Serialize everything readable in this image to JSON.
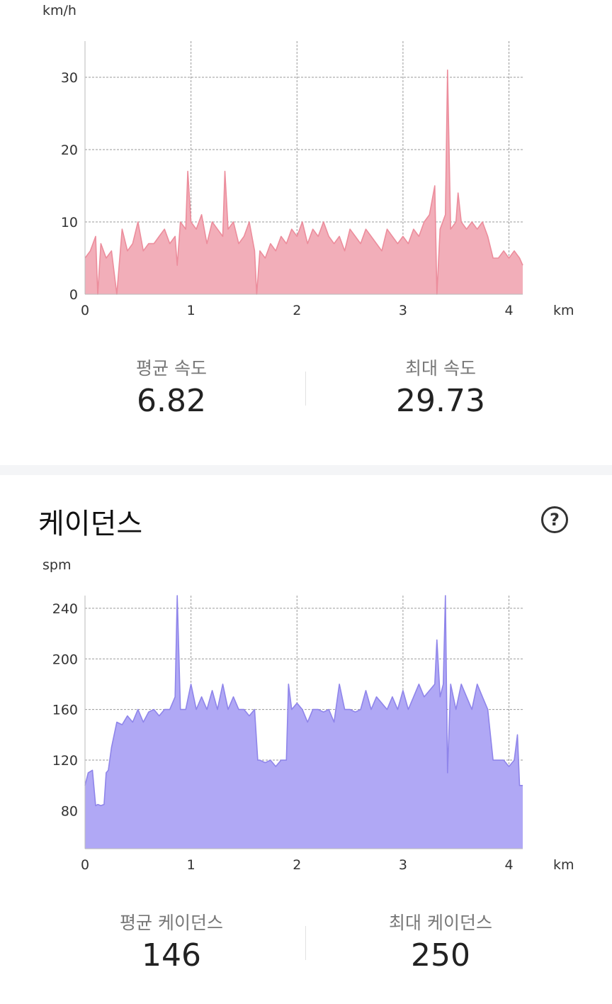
{
  "speed": {
    "unit": "km/h",
    "x_unit": "km",
    "stats": {
      "avg_label": "평균 속도",
      "avg_value": "6.82",
      "max_label": "최대 속도",
      "max_value": "29.73"
    }
  },
  "cadence": {
    "title": "케이던스",
    "help_icon": "question-circle-icon",
    "unit": "spm",
    "x_unit": "km",
    "stats": {
      "avg_label": "평균 케이던스",
      "avg_value": "146",
      "max_label": "최대 케이던스",
      "max_value": "250"
    }
  },
  "chart_data": [
    {
      "type": "area",
      "ylabel": "km/h",
      "xlabel": "km",
      "xlim": [
        0,
        4.13
      ],
      "ylim": [
        0,
        35
      ],
      "x_ticks": [
        0,
        1,
        2,
        3,
        4
      ],
      "y_ticks": [
        0,
        10,
        20,
        30
      ],
      "grid": true,
      "color": "#f2aeb9",
      "line_color": "#ec8d9c",
      "x": [
        0,
        0.05,
        0.1,
        0.12,
        0.15,
        0.2,
        0.25,
        0.3,
        0.35,
        0.4,
        0.45,
        0.5,
        0.55,
        0.6,
        0.65,
        0.7,
        0.75,
        0.8,
        0.85,
        0.87,
        0.9,
        0.95,
        0.97,
        1.0,
        1.05,
        1.1,
        1.15,
        1.2,
        1.25,
        1.3,
        1.32,
        1.35,
        1.4,
        1.45,
        1.5,
        1.55,
        1.6,
        1.62,
        1.65,
        1.7,
        1.75,
        1.8,
        1.85,
        1.9,
        1.95,
        2.0,
        2.05,
        2.1,
        2.15,
        2.2,
        2.25,
        2.3,
        2.35,
        2.4,
        2.45,
        2.5,
        2.55,
        2.6,
        2.65,
        2.7,
        2.75,
        2.8,
        2.85,
        2.9,
        2.95,
        3.0,
        3.05,
        3.1,
        3.15,
        3.2,
        3.25,
        3.3,
        3.32,
        3.35,
        3.4,
        3.42,
        3.45,
        3.5,
        3.52,
        3.55,
        3.6,
        3.65,
        3.7,
        3.75,
        3.8,
        3.85,
        3.9,
        3.95,
        4.0,
        4.05,
        4.1,
        4.13
      ],
      "y": [
        5,
        6,
        8,
        0,
        7,
        5,
        6,
        0,
        9,
        6,
        7,
        10,
        6,
        7,
        7,
        8,
        9,
        7,
        8,
        4,
        10,
        9,
        17,
        10,
        9,
        11,
        7,
        10,
        9,
        8,
        17,
        9,
        10,
        7,
        8,
        10,
        6,
        0,
        6,
        5,
        7,
        6,
        8,
        7,
        9,
        8,
        10,
        7,
        9,
        8,
        10,
        8,
        7,
        8,
        6,
        9,
        8,
        7,
        9,
        8,
        7,
        6,
        9,
        8,
        7,
        8,
        7,
        9,
        8,
        10,
        11,
        15,
        0,
        9,
        11,
        31,
        9,
        10,
        14,
        10,
        9,
        10,
        9,
        10,
        8,
        5,
        5,
        6,
        5,
        6,
        5,
        4
      ]
    },
    {
      "type": "area",
      "ylabel": "spm",
      "xlabel": "km",
      "xlim": [
        0,
        4.13
      ],
      "ylim": [
        50,
        250
      ],
      "x_ticks": [
        0,
        1,
        2,
        3,
        4
      ],
      "y_ticks": [
        80,
        120,
        160,
        200,
        240
      ],
      "grid": true,
      "color": "#b0a8f5",
      "line_color": "#8f85ea",
      "x": [
        0,
        0.03,
        0.07,
        0.1,
        0.12,
        0.15,
        0.18,
        0.2,
        0.22,
        0.25,
        0.3,
        0.35,
        0.4,
        0.45,
        0.5,
        0.55,
        0.6,
        0.65,
        0.7,
        0.75,
        0.8,
        0.85,
        0.87,
        0.9,
        0.95,
        1.0,
        1.05,
        1.1,
        1.15,
        1.2,
        1.25,
        1.3,
        1.35,
        1.4,
        1.45,
        1.5,
        1.55,
        1.6,
        1.63,
        1.65,
        1.7,
        1.75,
        1.8,
        1.85,
        1.9,
        1.92,
        1.95,
        2.0,
        2.05,
        2.1,
        2.15,
        2.2,
        2.25,
        2.3,
        2.35,
        2.4,
        2.45,
        2.5,
        2.55,
        2.6,
        2.65,
        2.7,
        2.75,
        2.8,
        2.85,
        2.9,
        2.95,
        3.0,
        3.05,
        3.1,
        3.15,
        3.2,
        3.25,
        3.3,
        3.32,
        3.35,
        3.38,
        3.4,
        3.42,
        3.45,
        3.5,
        3.55,
        3.6,
        3.65,
        3.7,
        3.75,
        3.8,
        3.85,
        3.9,
        3.95,
        4.0,
        4.05,
        4.08,
        4.1,
        4.13
      ],
      "y": [
        100,
        110,
        112,
        84,
        85,
        84,
        85,
        110,
        112,
        130,
        150,
        148,
        155,
        150,
        160,
        150,
        158,
        160,
        155,
        160,
        160,
        170,
        250,
        160,
        160,
        180,
        160,
        170,
        160,
        175,
        160,
        180,
        160,
        170,
        160,
        160,
        155,
        160,
        120,
        120,
        118,
        120,
        115,
        120,
        120,
        180,
        160,
        165,
        160,
        150,
        160,
        160,
        158,
        160,
        150,
        180,
        160,
        160,
        158,
        160,
        175,
        160,
        170,
        165,
        160,
        170,
        160,
        175,
        160,
        170,
        180,
        170,
        175,
        180,
        215,
        170,
        180,
        250,
        110,
        180,
        160,
        180,
        170,
        160,
        180,
        170,
        160,
        120,
        120,
        120,
        115,
        120,
        140,
        100,
        100
      ]
    }
  ]
}
